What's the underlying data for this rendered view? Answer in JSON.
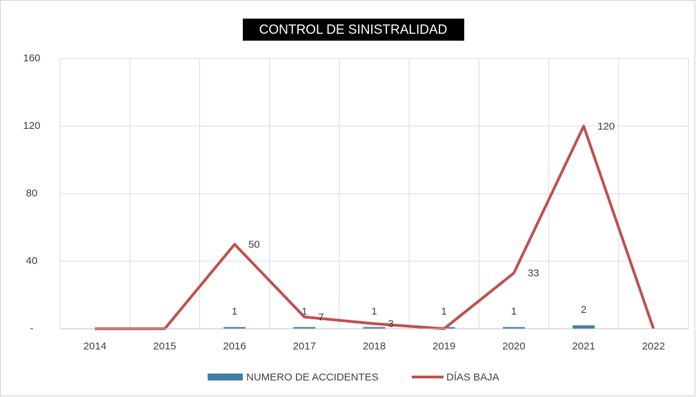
{
  "chart_data": {
    "type": "bar+line",
    "title": "CONTROL DE SINISTRALIDAD",
    "categories": [
      "2014",
      "2015",
      "2016",
      "2017",
      "2018",
      "2019",
      "2020",
      "2021",
      "2022"
    ],
    "series": [
      {
        "name": "NUMERO DE ACCIDENTES",
        "type": "bar",
        "color": "#3d7fa6",
        "values": [
          null,
          null,
          1,
          1,
          1,
          1,
          1,
          2,
          null
        ]
      },
      {
        "name": "DÍAS BAJA",
        "type": "line",
        "color": "#c0504d",
        "values": [
          0,
          0,
          50,
          7,
          3,
          0,
          33,
          120,
          0
        ]
      }
    ],
    "ylim": [
      0,
      160
    ],
    "yticks": [
      {
        "value": 0,
        "label": "-"
      },
      40,
      80,
      120,
      160
    ],
    "grid": true,
    "legend": "bottom"
  }
}
